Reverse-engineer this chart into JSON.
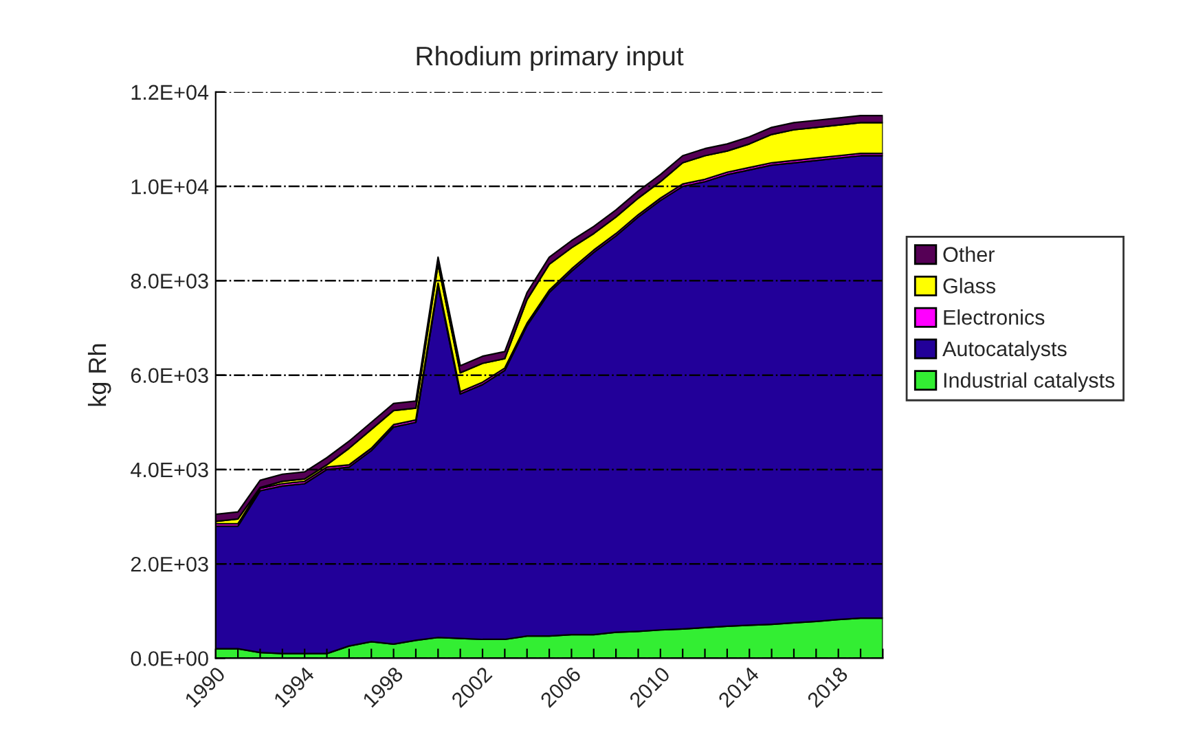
{
  "chart_data": {
    "type": "area",
    "stacked": true,
    "title": "Rhodium primary input",
    "ylabel": "kg Rh",
    "x": [
      1990,
      1991,
      1992,
      1993,
      1994,
      1995,
      1996,
      1997,
      1998,
      1999,
      2000,
      2001,
      2002,
      2003,
      2004,
      2005,
      2006,
      2007,
      2008,
      2009,
      2010,
      2011,
      2012,
      2013,
      2014,
      2015,
      2016,
      2017,
      2018,
      2019,
      2020
    ],
    "series": [
      {
        "name": "Industrial catalysts",
        "color": "#33ee33",
        "values": [
          200,
          200,
          120,
          100,
          100,
          100,
          260,
          350,
          300,
          380,
          440,
          420,
          400,
          400,
          470,
          470,
          500,
          500,
          550,
          570,
          600,
          620,
          650,
          680,
          700,
          720,
          750,
          780,
          820,
          850,
          850
        ]
      },
      {
        "name": "Autocatalysts",
        "color": "#220099",
        "values": [
          2600,
          2600,
          3430,
          3550,
          3600,
          3900,
          3790,
          4050,
          4600,
          4620,
          7460,
          5180,
          5400,
          5700,
          6580,
          7280,
          7700,
          8100,
          8400,
          8780,
          9100,
          9380,
          9450,
          9570,
          9650,
          9730,
          9750,
          9770,
          9780,
          9800,
          9800
        ]
      },
      {
        "name": "Electronics",
        "color": "#ff00ff",
        "values": [
          50,
          50,
          50,
          50,
          50,
          50,
          50,
          50,
          50,
          50,
          50,
          50,
          50,
          50,
          50,
          50,
          50,
          50,
          50,
          50,
          50,
          50,
          50,
          50,
          50,
          50,
          50,
          50,
          50,
          50,
          50
        ]
      },
      {
        "name": "Glass",
        "color": "#ffff00",
        "values": [
          50,
          100,
          20,
          50,
          50,
          50,
          350,
          400,
          300,
          250,
          400,
          400,
          400,
          200,
          500,
          550,
          450,
          350,
          350,
          350,
          350,
          450,
          500,
          450,
          500,
          600,
          650,
          650,
          650,
          650,
          650
        ]
      },
      {
        "name": "Other",
        "color": "#550055",
        "values": [
          150,
          150,
          150,
          150,
          150,
          150,
          150,
          150,
          150,
          150,
          150,
          150,
          150,
          150,
          150,
          150,
          150,
          150,
          150,
          150,
          150,
          150,
          150,
          150,
          150,
          150,
          150,
          150,
          150,
          150,
          150
        ]
      }
    ],
    "xlim": [
      1990,
      2020
    ],
    "xticks": [
      {
        "value": 1990,
        "label": "1990"
      },
      {
        "value": 1991,
        "label": null
      },
      {
        "value": 1992,
        "label": null
      },
      {
        "value": 1993,
        "label": null
      },
      {
        "value": 1994,
        "label": "1994"
      },
      {
        "value": 1995,
        "label": null
      },
      {
        "value": 1996,
        "label": null
      },
      {
        "value": 1997,
        "label": null
      },
      {
        "value": 1998,
        "label": "1998"
      },
      {
        "value": 1999,
        "label": null
      },
      {
        "value": 2000,
        "label": null
      },
      {
        "value": 2001,
        "label": null
      },
      {
        "value": 2002,
        "label": "2002"
      },
      {
        "value": 2003,
        "label": null
      },
      {
        "value": 2004,
        "label": null
      },
      {
        "value": 2005,
        "label": null
      },
      {
        "value": 2006,
        "label": "2006"
      },
      {
        "value": 2007,
        "label": null
      },
      {
        "value": 2008,
        "label": null
      },
      {
        "value": 2009,
        "label": null
      },
      {
        "value": 2010,
        "label": "2010"
      },
      {
        "value": 2011,
        "label": null
      },
      {
        "value": 2012,
        "label": null
      },
      {
        "value": 2013,
        "label": null
      },
      {
        "value": 2014,
        "label": "2014"
      },
      {
        "value": 2015,
        "label": null
      },
      {
        "value": 2016,
        "label": null
      },
      {
        "value": 2017,
        "label": null
      },
      {
        "value": 2018,
        "label": "2018"
      },
      {
        "value": 2019,
        "label": null
      },
      {
        "value": 2020,
        "label": null
      }
    ],
    "ylim": [
      0,
      12000
    ],
    "yticks": [
      {
        "value": 0,
        "label": "0.0E+00"
      },
      {
        "value": 2000,
        "label": "2.0E+03"
      },
      {
        "value": 4000,
        "label": "4.0E+03"
      },
      {
        "value": 6000,
        "label": "6.0E+03"
      },
      {
        "value": 8000,
        "label": "8.0E+03"
      },
      {
        "value": 10000,
        "label": "1.0E+04"
      },
      {
        "value": 12000,
        "label": "1.2E+04"
      }
    ],
    "grid": "y",
    "legend": "right"
  }
}
